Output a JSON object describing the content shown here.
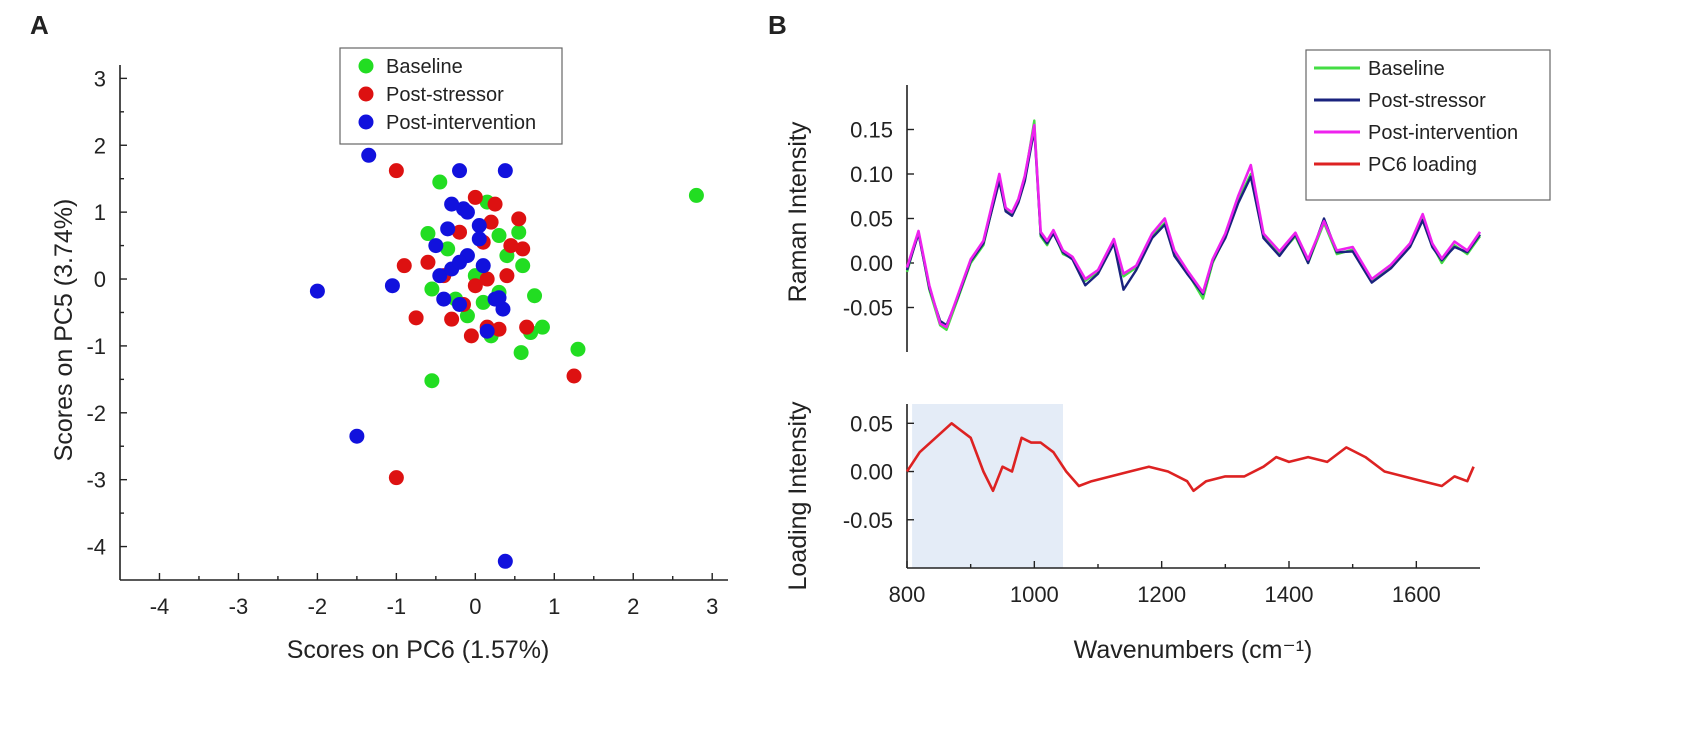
{
  "panels": {
    "a": {
      "label": "A"
    },
    "b": {
      "label": "B"
    }
  },
  "chart_data": [
    {
      "type": "scatter",
      "panel": "A",
      "title": "",
      "xlabel": "Scores on PC6 (1.57%)",
      "ylabel": "Scores on PC5 (3.74%)",
      "xlim": [
        -4.5,
        3.2
      ],
      "ylim": [
        -4.5,
        3.2
      ],
      "xticks": [
        -4,
        -3,
        -2,
        -1,
        0,
        1,
        2,
        3
      ],
      "yticks": [
        3,
        2,
        1,
        0,
        -1,
        -2,
        -3,
        -4
      ],
      "legend_position": "top-center",
      "series": [
        {
          "name": "Baseline",
          "color": "#22dd22",
          "points": [
            [
              2.8,
              1.25
            ],
            [
              1.3,
              -1.05
            ],
            [
              0.85,
              -0.72
            ],
            [
              0.75,
              -0.25
            ],
            [
              0.58,
              -1.1
            ],
            [
              0.55,
              0.7
            ],
            [
              0.6,
              0.2
            ],
            [
              0.4,
              0.35
            ],
            [
              0.3,
              0.65
            ],
            [
              -0.55,
              -1.52
            ],
            [
              -0.6,
              0.68
            ],
            [
              -0.55,
              -0.15
            ],
            [
              -0.45,
              1.45
            ],
            [
              -0.35,
              0.45
            ],
            [
              0.15,
              1.15
            ],
            [
              0.0,
              0.05
            ],
            [
              -0.1,
              -0.55
            ],
            [
              0.2,
              -0.85
            ],
            [
              0.3,
              -0.2
            ],
            [
              0.1,
              -0.35
            ],
            [
              0.7,
              -0.8
            ],
            [
              -0.25,
              -0.3
            ]
          ]
        },
        {
          "name": "Post-stressor",
          "color": "#dd1111",
          "points": [
            [
              -1.0,
              1.62
            ],
            [
              -0.9,
              0.2
            ],
            [
              -0.75,
              -0.58
            ],
            [
              -0.6,
              0.25
            ],
            [
              -0.3,
              -0.6
            ],
            [
              -0.15,
              -0.38
            ],
            [
              0.0,
              1.22
            ],
            [
              0.1,
              0.55
            ],
            [
              0.25,
              1.12
            ],
            [
              0.15,
              -0.72
            ],
            [
              0.3,
              -0.75
            ],
            [
              0.55,
              0.9
            ],
            [
              0.6,
              0.45
            ],
            [
              0.4,
              0.05
            ],
            [
              0.65,
              -0.72
            ],
            [
              0.2,
              0.85
            ],
            [
              0.45,
              0.5
            ],
            [
              -0.05,
              -0.85
            ],
            [
              0.0,
              -0.1
            ],
            [
              1.25,
              -1.45
            ],
            [
              -1.0,
              -2.97
            ],
            [
              -0.4,
              0.05
            ],
            [
              -0.2,
              0.7
            ],
            [
              0.15,
              0.0
            ]
          ]
        },
        {
          "name": "Post-intervention",
          "color": "#1111dd",
          "points": [
            [
              -1.35,
              1.85
            ],
            [
              -1.05,
              -0.1
            ],
            [
              -2.0,
              -0.18
            ],
            [
              -1.5,
              -2.35
            ],
            [
              0.38,
              -4.22
            ],
            [
              -0.2,
              1.62
            ],
            [
              0.38,
              1.62
            ],
            [
              -0.15,
              1.05
            ],
            [
              -0.1,
              1.0
            ],
            [
              -0.3,
              1.12
            ],
            [
              0.05,
              0.8
            ],
            [
              -0.35,
              0.75
            ],
            [
              -0.5,
              0.5
            ],
            [
              -0.1,
              0.35
            ],
            [
              -0.45,
              0.05
            ],
            [
              -0.3,
              0.15
            ],
            [
              0.1,
              0.2
            ],
            [
              -0.4,
              -0.3
            ],
            [
              -0.2,
              -0.38
            ],
            [
              0.25,
              -0.3
            ],
            [
              0.35,
              -0.45
            ],
            [
              0.15,
              -0.78
            ],
            [
              0.05,
              0.6
            ],
            [
              -0.2,
              0.25
            ],
            [
              0.3,
              -0.28
            ]
          ]
        }
      ]
    },
    {
      "type": "line",
      "panel": "B-upper",
      "title": "",
      "xlabel": "",
      "ylabel": "Raman Intensity",
      "xlim": [
        800,
        1700
      ],
      "ylim": [
        -0.1,
        0.2
      ],
      "yticks": [
        0.15,
        0.1,
        0.05,
        0.0,
        -0.05
      ],
      "ytick_labels": [
        "0.15",
        "0.10",
        "0.05",
        "0.00",
        "-0.05"
      ],
      "legend_position": "top-right",
      "series": [
        {
          "name": "Baseline",
          "color": "#44dd44",
          "x": [
            800,
            818,
            835,
            852,
            862,
            880,
            900,
            920,
            945,
            955,
            965,
            975,
            985,
            1000,
            1010,
            1020,
            1030,
            1045,
            1060,
            1080,
            1100,
            1125,
            1140,
            1160,
            1185,
            1205,
            1220,
            1240,
            1265,
            1280,
            1300,
            1320,
            1340,
            1360,
            1385,
            1410,
            1430,
            1455,
            1475,
            1500,
            1530,
            1560,
            1590,
            1610,
            1625,
            1640,
            1660,
            1680,
            1700
          ],
          "y": [
            -0.01,
            0.035,
            -0.03,
            -0.07,
            -0.075,
            -0.04,
            0.0,
            0.02,
            0.095,
            0.06,
            0.055,
            0.07,
            0.095,
            0.16,
            0.03,
            0.02,
            0.035,
            0.01,
            0.005,
            -0.02,
            -0.01,
            0.025,
            -0.015,
            -0.005,
            0.03,
            0.045,
            0.01,
            -0.01,
            -0.04,
            0.0,
            0.03,
            0.07,
            0.1,
            0.03,
            0.01,
            0.03,
            0.0,
            0.045,
            0.01,
            0.015,
            -0.02,
            -0.005,
            0.02,
            0.05,
            0.02,
            0.0,
            0.02,
            0.01,
            0.03
          ]
        },
        {
          "name": "Post-stressor",
          "color": "#1a237e",
          "x": [
            800,
            818,
            835,
            852,
            862,
            880,
            900,
            920,
            945,
            955,
            965,
            975,
            985,
            1000,
            1010,
            1020,
            1030,
            1045,
            1060,
            1080,
            1100,
            1125,
            1140,
            1160,
            1185,
            1205,
            1220,
            1240,
            1265,
            1280,
            1300,
            1320,
            1340,
            1360,
            1385,
            1410,
            1430,
            1455,
            1475,
            1500,
            1530,
            1560,
            1590,
            1610,
            1625,
            1640,
            1660,
            1680,
            1700
          ],
          "y": [
            -0.008,
            0.033,
            -0.028,
            -0.065,
            -0.07,
            -0.038,
            0.002,
            0.022,
            0.092,
            0.058,
            0.053,
            0.068,
            0.092,
            0.15,
            0.032,
            0.022,
            0.033,
            0.012,
            0.004,
            -0.025,
            -0.012,
            0.022,
            -0.03,
            -0.008,
            0.028,
            0.043,
            0.008,
            -0.012,
            -0.035,
            0.002,
            0.028,
            0.067,
            0.097,
            0.028,
            0.008,
            0.032,
            0.0,
            0.05,
            0.012,
            0.013,
            -0.022,
            -0.006,
            0.018,
            0.048,
            0.018,
            0.003,
            0.018,
            0.012,
            0.032
          ]
        },
        {
          "name": "Post-intervention",
          "color": "#ee22ee",
          "x": [
            800,
            818,
            835,
            852,
            862,
            880,
            900,
            920,
            945,
            955,
            965,
            975,
            985,
            1000,
            1010,
            1020,
            1030,
            1045,
            1060,
            1080,
            1100,
            1125,
            1140,
            1160,
            1185,
            1205,
            1220,
            1240,
            1265,
            1280,
            1300,
            1320,
            1340,
            1360,
            1385,
            1410,
            1430,
            1455,
            1475,
            1500,
            1530,
            1560,
            1590,
            1610,
            1625,
            1640,
            1660,
            1680,
            1700
          ],
          "y": [
            -0.005,
            0.036,
            -0.025,
            -0.068,
            -0.072,
            -0.036,
            0.004,
            0.025,
            0.1,
            0.062,
            0.057,
            0.072,
            0.098,
            0.155,
            0.035,
            0.025,
            0.037,
            0.014,
            0.007,
            -0.018,
            -0.008,
            0.027,
            -0.012,
            -0.003,
            0.033,
            0.05,
            0.014,
            -0.008,
            -0.033,
            0.004,
            0.033,
            0.075,
            0.11,
            0.033,
            0.013,
            0.034,
            0.004,
            0.047,
            0.014,
            0.018,
            -0.018,
            -0.002,
            0.022,
            0.055,
            0.022,
            0.005,
            0.024,
            0.014,
            0.035
          ]
        },
        {
          "name": "PC6 loading",
          "color": "#dd2222",
          "legend_only": true
        }
      ]
    },
    {
      "type": "line",
      "panel": "B-lower",
      "title": "",
      "xlabel": "Wavenumbers (cm⁻¹)",
      "ylabel": "Loading Intensity",
      "xlim": [
        800,
        1700
      ],
      "ylim": [
        -0.1,
        0.07
      ],
      "xticks": [
        800,
        1000,
        1200,
        1400,
        1600
      ],
      "yticks": [
        0.05,
        0.0,
        -0.05
      ],
      "ytick_labels": [
        "0.05",
        "0.00",
        "-0.05"
      ],
      "highlight_region": [
        808,
        1045
      ],
      "series": [
        {
          "name": "PC6 loading",
          "color": "#dd2222",
          "x": [
            800,
            820,
            845,
            870,
            880,
            900,
            920,
            935,
            950,
            965,
            980,
            995,
            1010,
            1030,
            1050,
            1070,
            1090,
            1120,
            1150,
            1180,
            1210,
            1240,
            1250,
            1270,
            1300,
            1330,
            1360,
            1380,
            1400,
            1430,
            1460,
            1490,
            1520,
            1550,
            1580,
            1610,
            1640,
            1660,
            1680,
            1690
          ],
          "y": [
            0.0,
            0.02,
            0.035,
            0.05,
            0.045,
            0.035,
            0.0,
            -0.02,
            0.005,
            0.0,
            0.035,
            0.03,
            0.03,
            0.02,
            0.0,
            -0.015,
            -0.01,
            -0.005,
            0.0,
            0.005,
            0.0,
            -0.01,
            -0.02,
            -0.01,
            -0.005,
            -0.005,
            0.005,
            0.015,
            0.01,
            0.015,
            0.01,
            0.025,
            0.015,
            0.0,
            -0.005,
            -0.01,
            -0.015,
            -0.005,
            -0.01,
            0.005
          ]
        }
      ]
    }
  ]
}
